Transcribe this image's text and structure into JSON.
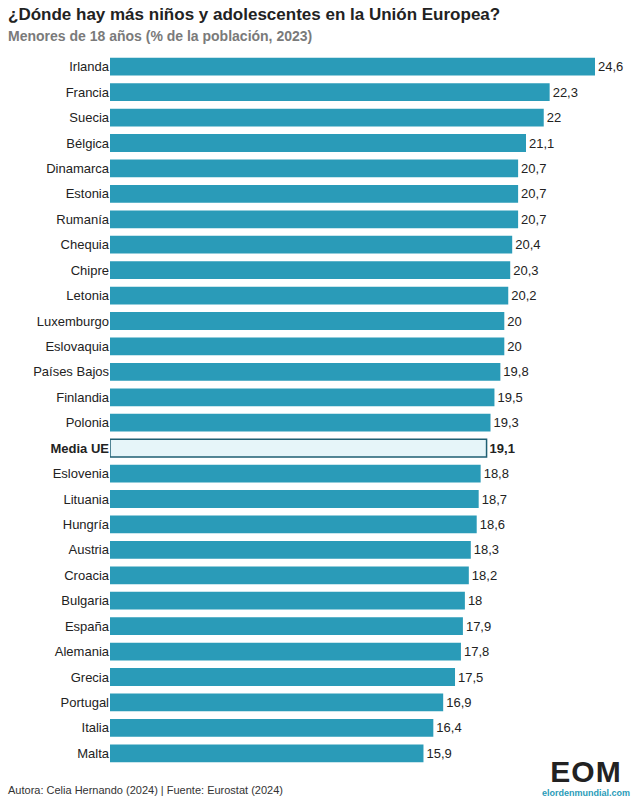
{
  "chart_data": {
    "type": "bar",
    "orientation": "horizontal",
    "title": "¿Dónde hay más niños y adolescentes en la Unión Europea?",
    "subtitle": "Menores de 18 años (% de la población, 2023)",
    "source": "Autora: Celia Hernando (2024) | Fuente: Eurostat (2024)",
    "logo": "EOM",
    "logo_url": "elordenmundial.com",
    "categories": [
      "Irlanda",
      "Francia",
      "Suecia",
      "Bélgica",
      "Dinamarca",
      "Estonia",
      "Rumanía",
      "Chequia",
      "Chipre",
      "Letonia",
      "Luxemburgo",
      "Eslovaquia",
      "Países Bajos",
      "Finlandia",
      "Polonia",
      "Media UE",
      "Eslovenia",
      "Lituania",
      "Hungría",
      "Austria",
      "Croacia",
      "Bulgaria",
      "España",
      "Alemania",
      "Grecia",
      "Portugal",
      "Italia",
      "Malta"
    ],
    "values": [
      24.6,
      22.3,
      22,
      21.1,
      20.7,
      20.7,
      20.7,
      20.4,
      20.3,
      20.2,
      20,
      20,
      19.8,
      19.5,
      19.3,
      19.1,
      18.8,
      18.7,
      18.6,
      18.3,
      18.2,
      18,
      17.9,
      17.8,
      17.5,
      16.9,
      16.4,
      15.9
    ],
    "value_labels": [
      "24,6",
      "22,3",
      "22",
      "21,1",
      "20,7",
      "20,7",
      "20,7",
      "20,4",
      "20,3",
      "20,2",
      "20",
      "20",
      "19,8",
      "19,5",
      "19,3",
      "19,1",
      "18,8",
      "18,7",
      "18,6",
      "18,3",
      "18,2",
      "18",
      "17,9",
      "17,8",
      "17,5",
      "16,9",
      "16,4",
      "15,9"
    ],
    "colors": [
      "#2a9bb8",
      "#2a9bb8",
      "#2a9bb8",
      "#2a9bb8",
      "#2a9bb8",
      "#2a9bb8",
      "#2a9bb8",
      "#2a9bb8",
      "#2a9bb8",
      "#2a9bb8",
      "#2a9bb8",
      "#2a9bb8",
      "#2a9bb8",
      "#2a9bb8",
      "#2a9bb8",
      "#e6f5f9",
      "#2a9bb8",
      "#2a9bb8",
      "#2a9bb8",
      "#2a9bb8",
      "#2a9bb8",
      "#2a9bb8",
      "#2a9bb8",
      "#2a9bb8",
      "#2a9bb8",
      "#2a9bb8",
      "#2a9bb8",
      "#2a9bb8"
    ],
    "xlim": [
      0,
      24.6
    ],
    "grid": false,
    "data_labels": true,
    "tick_labels": "y"
  }
}
